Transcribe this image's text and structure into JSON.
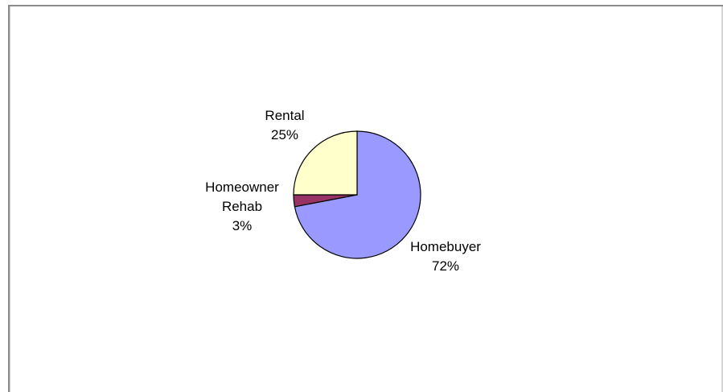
{
  "chart_data": {
    "type": "pie",
    "series": [
      {
        "slices": [
          {
            "label": "Homebuyer",
            "value": 72,
            "pct_text": "72%",
            "color": "#9999ff"
          },
          {
            "label": "Homeowner Rehab",
            "value": 3,
            "pct_text": "3%",
            "color": "#993366"
          },
          {
            "label": "Rental",
            "value": 25,
            "pct_text": "25%",
            "color": "#ffffcc"
          }
        ]
      }
    ],
    "start_angle_deg": 0,
    "direction": "clockwise",
    "outline_color": "#000000"
  }
}
